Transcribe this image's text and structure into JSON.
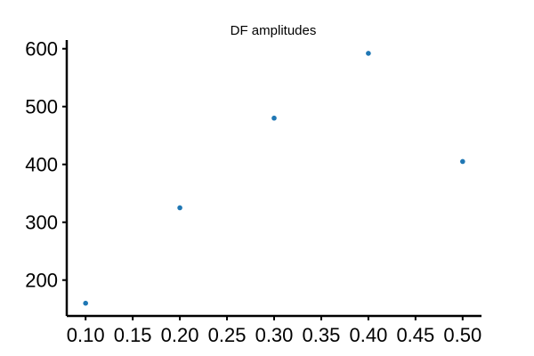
{
  "chart_data": {
    "type": "scatter",
    "title": "DF amplitudes",
    "xlabel": "",
    "ylabel": "",
    "x": [
      0.1,
      0.2,
      0.3,
      0.4,
      0.5
    ],
    "y": [
      160,
      325,
      480,
      592,
      405
    ],
    "xlim": [
      0.08,
      0.52
    ],
    "ylim": [
      138,
      615
    ],
    "x_ticks": [
      0.1,
      0.15,
      0.2,
      0.25,
      0.3,
      0.35,
      0.4,
      0.45,
      0.5
    ],
    "x_tick_labels": [
      "0.10",
      "0.15",
      "0.20",
      "0.25",
      "0.30",
      "0.35",
      "0.40",
      "0.45",
      "0.50"
    ],
    "y_ticks": [
      200,
      300,
      400,
      500,
      600
    ],
    "y_tick_labels": [
      "200",
      "300",
      "400",
      "500",
      "600"
    ],
    "grid": false,
    "marker_color": "#1f77b4"
  }
}
